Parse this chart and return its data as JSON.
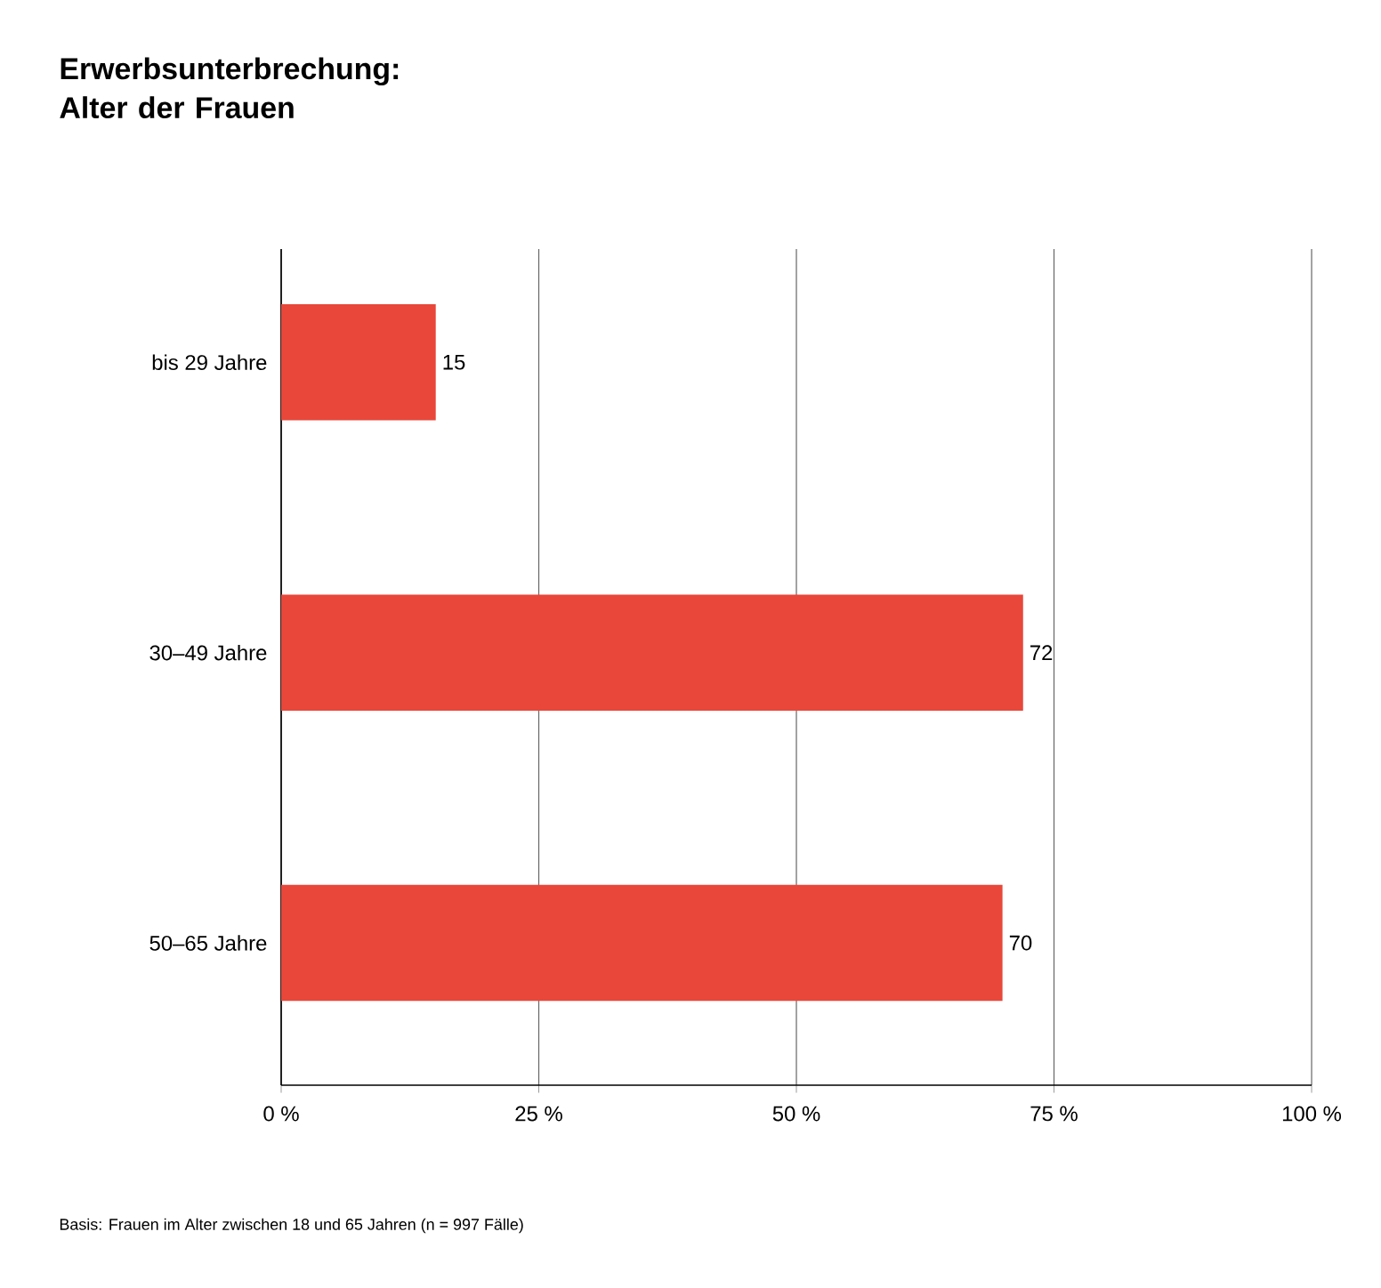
{
  "chart_data": {
    "type": "bar",
    "orientation": "horizontal",
    "title": "Erwerbsunterbrechung: Alter der Frauen",
    "categories": [
      "bis 29 Jahre",
      "30–49 Jahre",
      "50–65 Jahre"
    ],
    "values": [
      15,
      72,
      70
    ],
    "color": "#e8473a",
    "data_labels": true,
    "xlim": [
      0,
      100
    ],
    "xticks": [
      {
        "value": 0,
        "label": "0 %"
      },
      {
        "value": 25,
        "label": "25 %"
      },
      {
        "value": 50,
        "label": "50 %"
      },
      {
        "value": 75,
        "label": "75 %"
      },
      {
        "value": 100,
        "label": "100 %"
      }
    ],
    "grid": "x",
    "annotations": [
      "Basis: Frauen im Alter zwischen 18 und 65 Jahren (n = 997 Fälle)"
    ]
  }
}
